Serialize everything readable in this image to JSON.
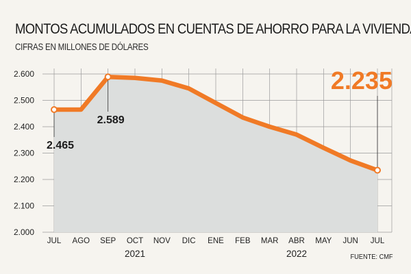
{
  "title": "MONTOS ACUMULADOS EN CUENTAS DE AHORRO PARA LA VIVIENDA",
  "subtitle": "CIFRAS EN MILLONES DE DÓLARES",
  "source": "FUENTE: CMF",
  "colors": {
    "line": "#f07a26",
    "area": "#dcdedd",
    "grid": "#9a9a9a",
    "highlight_label": "#f07a26",
    "background": "#f6f4ef"
  },
  "chart_data": {
    "type": "area",
    "categories": [
      "JUL",
      "AGO",
      "SEP",
      "OCT",
      "NOV",
      "DIC",
      "ENE",
      "FEB",
      "MAR",
      "ABR",
      "MAY",
      "JUN",
      "JUL"
    ],
    "values": [
      2465,
      2465,
      2589,
      2585,
      2575,
      2545,
      2490,
      2435,
      2400,
      2370,
      2320,
      2272,
      2235
    ],
    "year_labels": [
      {
        "label": "2021",
        "category_index": 3
      },
      {
        "label": "2022",
        "category_index": 9
      }
    ],
    "yticks": [
      {
        "value": 2000,
        "label": "2.000"
      },
      {
        "value": 2100,
        "label": "2.100"
      },
      {
        "value": 2200,
        "label": "2.200"
      },
      {
        "value": 2300,
        "label": "2.300"
      },
      {
        "value": 2400,
        "label": "2.400"
      },
      {
        "value": 2500,
        "label": "2.500"
      },
      {
        "value": 2600,
        "label": "2.600"
      }
    ],
    "ylim": [
      2000,
      2600
    ],
    "grid": true,
    "annotations": [
      {
        "index": 0,
        "label": "2.465",
        "style": "normal",
        "marker": true
      },
      {
        "index": 2,
        "label": "2.589",
        "style": "normal",
        "marker": true
      },
      {
        "index": 12,
        "label": "2.235",
        "style": "highlight",
        "marker": true
      }
    ],
    "xlabel": "",
    "ylabel": ""
  }
}
